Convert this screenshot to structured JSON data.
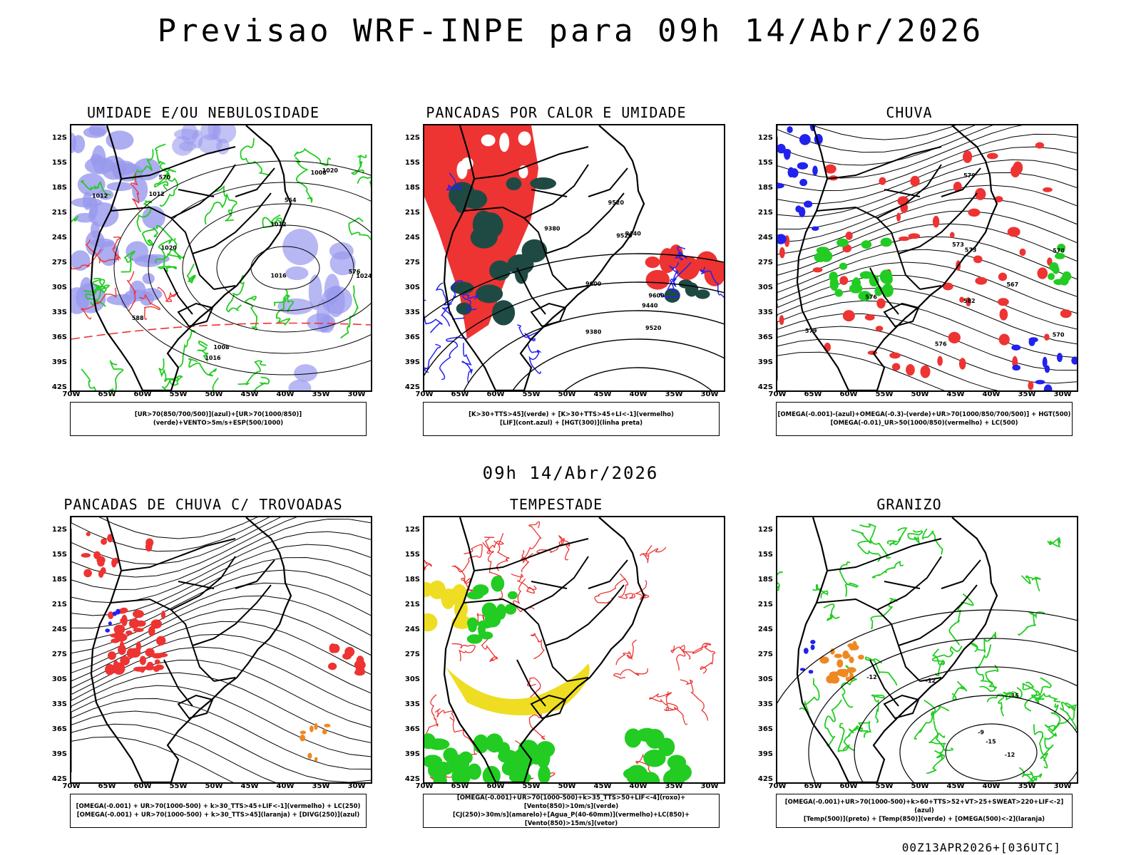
{
  "header": {
    "title": "Previsao WRF-INPE  para 09h 14/Abr/2026"
  },
  "middle": {
    "date_label": "09h 14/Abr/2026"
  },
  "footer": {
    "run_label": "00Z13APR2026+[036UTC]"
  },
  "axes": {
    "lat_labels": [
      "12S",
      "15S",
      "18S",
      "21S",
      "24S",
      "27S",
      "30S",
      "33S",
      "36S",
      "39S",
      "42S"
    ],
    "lon_labels": [
      "70W",
      "65W",
      "60W",
      "55W",
      "50W",
      "45W",
      "40W",
      "35W",
      "30W"
    ]
  },
  "colors": {
    "blue": "#2222ee",
    "green": "#22cc22",
    "red": "#ee3333",
    "orange": "#ee8822",
    "yellow": "#eedd22",
    "darkteal": "#1f4a44",
    "purple": "#9999ee"
  },
  "panels": [
    {
      "id": "umidade",
      "title": "UMIDADE E/OU NEBULOSIDADE",
      "legend": [
        "[UR>70(850/700/500)](azul)+[UR>70(1000/850)](verde)+VENTO>5m/s+ESP(500/1000)"
      ],
      "contour_labels": [
        "1012",
        "1012",
        "1012",
        "1008",
        "1008",
        "1016",
        "1016",
        "1020",
        "1020",
        "1024",
        "576",
        "570",
        "564",
        "588"
      ]
    },
    {
      "id": "pancadas-calor",
      "title": "PANCADAS POR CALOR E UMIDADE",
      "legend": [
        "[K>30+TTS>45](verde) + [K>30+TTS>45+LI<-1](vermelho)",
        "[LIF](cont.azul) + [HGT(300)](linha preta)"
      ],
      "contour_labels": [
        "9600",
        "9600",
        "9520",
        "9440",
        "9380",
        "9520",
        "9440",
        "9380",
        "9520"
      ]
    },
    {
      "id": "chuva",
      "title": "CHUVA",
      "legend": [
        "[OMEGA(-0.001)-(azul)+OMEGA(-0.3)-(verde)+UR>70(1000/850/700/500)] + HGT(500)",
        "[OMEGA(-0.01)_UR>50(1000/850)(vermelho) + LC(500)"
      ],
      "contour_labels": [
        "582",
        "579",
        "576",
        "573",
        "570",
        "567",
        "579",
        "576",
        "573",
        "570"
      ]
    },
    {
      "id": "pancadas-trovoadas",
      "title": "PANCADAS DE CHUVA C/ TROVOADAS",
      "legend": [
        "[OMEGA(-0.001) + UR>70(1000-500) + k>30_TTS>45+LIF<-1](vermelho) + LC(250)",
        "[OMEGA(-0.001) + UR>70(1000-500) + k>30_TTS>45](laranja) + [DIVG(250)](azul)"
      ],
      "contour_labels": []
    },
    {
      "id": "tempestade",
      "title": "TEMPESTADE",
      "legend": [
        "[OMEGA(-0.001)+UR>70(1000-500)+k>35_TTS>50+LIF<-4](roxo)+[Vento(850)>10m/s](verde)",
        "[CJ(250)>30m/s](amarelo)+[Agua_P(40-60mm)](vermelho)+LC(850)+[Vento(850)>15m/s](vetor)"
      ],
      "contour_labels": []
    },
    {
      "id": "granizo",
      "title": "GRANIZO",
      "legend": [
        "[OMEGA(-0.001)+UR>70(1000-500)+k>60+TTS>52+VT>25+SWEAT>220+LIF<-2](azul)",
        "[Temp(500)](preto) + [Temp(850)](verde) + [OMEGA(500)<-2](laranja)"
      ],
      "contour_labels": [
        "-12",
        "-12",
        "-15",
        "-15",
        "-12",
        "-9"
      ]
    }
  ]
}
